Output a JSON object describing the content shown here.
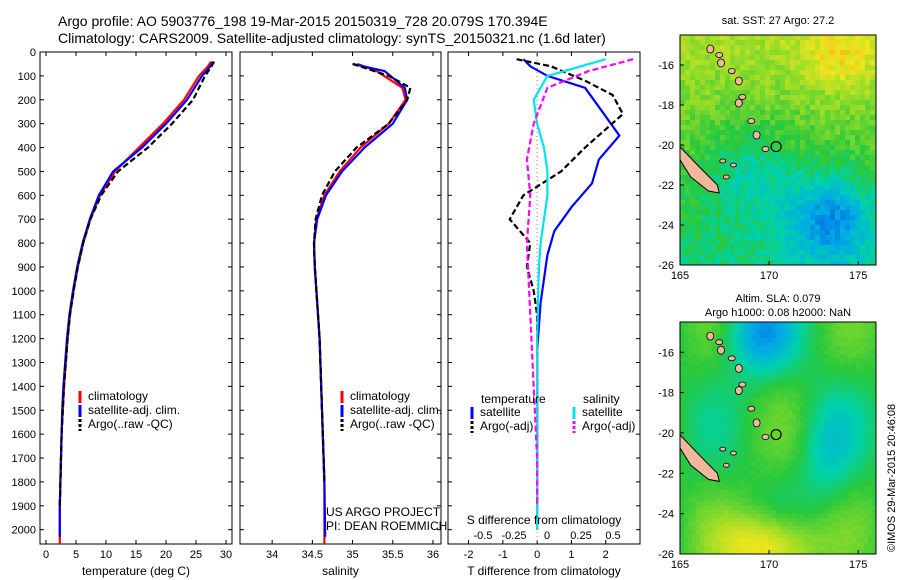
{
  "title_line1": "Argo profile: AO 5903776_198 19-Mar-2015 20150319_728 20.079S 170.394E",
  "title_line2": "Climatology: CARS2009. Satellite-adjusted climatology: synTS_20150321.nc (1.6d later)",
  "stamp": "©IMOS 29-Mar-2015 20:46:08",
  "colors": {
    "climatology": "#ff0000",
    "satellite": "#0000ff",
    "argo": "#000000",
    "sat_salinity": "#00e5e5",
    "argo_salinity": "#ff00ff"
  },
  "chart_data": [
    {
      "type": "line",
      "id": "temperature",
      "xlabel": "temperature (deg C)",
      "ylabel": "",
      "xlim": [
        -1,
        31
      ],
      "ylim": [
        2060,
        0
      ],
      "xticks": [
        "0",
        "5",
        "10",
        "15",
        "20",
        "25",
        "30"
      ],
      "yticks": [
        "0",
        "100",
        "200",
        "300",
        "400",
        "500",
        "600",
        "700",
        "800",
        "900",
        "1000",
        "1100",
        "1200",
        "1300",
        "1400",
        "1500",
        "1600",
        "1700",
        "1800",
        "1900",
        "2000"
      ],
      "legend": [
        "climatology",
        "satellite-adj. clim.",
        "Argo(..raw -QC)"
      ],
      "series": [
        {
          "name": "climatology",
          "x": [
            27.5,
            27.0,
            25.5,
            23.0,
            19.5,
            15.5,
            11.5,
            9.0,
            7.4,
            6.2,
            5.3,
            4.6,
            4.0,
            3.6,
            3.3,
            3.0,
            2.8,
            2.6,
            2.5,
            2.4,
            2.3,
            2.3
          ],
          "y": [
            40,
            60,
            100,
            200,
            300,
            400,
            500,
            600,
            700,
            800,
            900,
            1000,
            1100,
            1200,
            1300,
            1400,
            1500,
            1600,
            1700,
            1800,
            1900,
            2060
          ]
        },
        {
          "name": "satellite-adj. clim.",
          "x": [
            27.8,
            27.4,
            26.0,
            23.5,
            20.0,
            16.0,
            11.2,
            8.8,
            7.3,
            6.1,
            5.2,
            4.5,
            3.9,
            3.5,
            3.2,
            2.9,
            2.7,
            2.6,
            2.5,
            2.4,
            2.3,
            2.3
          ],
          "y": [
            40,
            60,
            100,
            200,
            300,
            400,
            500,
            600,
            700,
            800,
            900,
            1000,
            1100,
            1200,
            1300,
            1400,
            1500,
            1600,
            1700,
            1800,
            1900,
            2030
          ]
        },
        {
          "name": "Argo(..raw -QC)",
          "x": [
            28.0,
            27.6,
            26.5,
            24.5,
            21.0,
            17.0,
            12.0,
            9.2,
            7.4,
            6.2,
            5.3,
            4.6,
            4.0,
            3.6,
            3.3,
            3.0,
            2.8,
            2.6,
            2.5,
            2.4,
            2.3
          ],
          "y": [
            40,
            60,
            100,
            200,
            300,
            400,
            500,
            600,
            700,
            800,
            900,
            1000,
            1100,
            1200,
            1300,
            1400,
            1500,
            1600,
            1700,
            1800,
            1900
          ]
        }
      ]
    },
    {
      "type": "line",
      "id": "salinity",
      "xlabel": "salinity",
      "ylabel": "",
      "xlim": [
        33.6,
        36.1
      ],
      "ylim": [
        2060,
        0
      ],
      "xticks": [
        "34",
        "34.5",
        "35",
        "35.5",
        "36"
      ],
      "legend": [
        "climatology",
        "satellite-adj. clim.",
        "Argo(..raw -QC)"
      ],
      "annotation": [
        "US ARGO PROJECT",
        "PI: DEAN ROEMMICH"
      ],
      "series": [
        {
          "name": "climatology",
          "x": [
            35.06,
            35.3,
            35.62,
            35.66,
            35.45,
            35.1,
            34.84,
            34.65,
            34.55,
            34.52,
            34.53,
            34.55,
            34.57,
            34.59,
            34.6,
            34.61,
            34.62,
            34.63,
            34.64,
            34.65,
            34.65
          ],
          "y": [
            50,
            80,
            150,
            200,
            300,
            400,
            500,
            600,
            700,
            800,
            900,
            1000,
            1100,
            1200,
            1300,
            1400,
            1500,
            1600,
            1700,
            1800,
            2060
          ]
        },
        {
          "name": "satellite-adj. clim.",
          "x": [
            35.0,
            35.4,
            35.65,
            35.68,
            35.5,
            35.15,
            34.87,
            34.67,
            34.56,
            34.52,
            34.53,
            34.55,
            34.57,
            34.59,
            34.6,
            34.61,
            34.62,
            34.63,
            34.64,
            34.65,
            34.66
          ],
          "y": [
            50,
            80,
            150,
            200,
            300,
            400,
            500,
            600,
            700,
            800,
            900,
            1000,
            1100,
            1200,
            1300,
            1400,
            1500,
            1600,
            1700,
            1800,
            2030
          ]
        },
        {
          "name": "Argo(..raw -QC)",
          "x": [
            35.0,
            35.45,
            35.72,
            35.68,
            35.45,
            35.05,
            34.78,
            34.62,
            34.54,
            34.52,
            34.53,
            34.55,
            34.57,
            34.59,
            34.6,
            34.61,
            34.62,
            34.63,
            34.64,
            34.65
          ],
          "y": [
            50,
            100,
            150,
            200,
            300,
            400,
            500,
            600,
            700,
            800,
            900,
            1000,
            1100,
            1200,
            1300,
            1400,
            1500,
            1600,
            1700,
            1800
          ]
        }
      ]
    },
    {
      "type": "line",
      "id": "difference",
      "xlabel": "T difference from climatology",
      "x2label": "S difference from climatology",
      "xlim": [
        -2.6,
        3.0
      ],
      "ylim": [
        2060,
        0
      ],
      "xticks": [
        "-2",
        "-1",
        "0",
        "1",
        "2"
      ],
      "x2ticks": [
        "-0.5",
        "-0.25",
        "0",
        "0.25",
        "0.5"
      ],
      "legend": {
        "temperature": [
          "satellite",
          "Argo(-adj)"
        ],
        "salinity": [
          "satellite",
          "Argo(-adj)"
        ],
        "headers": [
          "temperature",
          "salinity"
        ]
      },
      "series": [
        {
          "name": "temperature satellite",
          "x": [
            -0.4,
            -0.2,
            0.3,
            1.4,
            1.9,
            2.4,
            1.8,
            1.6,
            1.0,
            0.5,
            0.3,
            0.2,
            0.1,
            0.05,
            0.0,
            0.0,
            0.0,
            0.0,
            0.0,
            0.0
          ],
          "y": [
            30,
            60,
            100,
            150,
            250,
            350,
            450,
            550,
            650,
            750,
            850,
            950,
            1050,
            1150,
            1250,
            1400,
            1550,
            1700,
            1850,
            2000
          ]
        },
        {
          "name": "temperature Argo(-adj)",
          "x": [
            -0.6,
            0.4,
            1.4,
            2.2,
            2.5,
            1.4,
            0.7,
            -0.4,
            -0.8,
            -0.2,
            -0.3,
            -0.1,
            0.0,
            0.0,
            0.0,
            0.0,
            0.0,
            0.0
          ],
          "y": [
            30,
            60,
            120,
            180,
            260,
            400,
            500,
            600,
            700,
            800,
            900,
            1000,
            1100,
            1200,
            1300,
            1500,
            1700,
            1900
          ]
        },
        {
          "name": "salinity satellite",
          "x": [
            2.0,
            0.3,
            -0.1,
            0.0,
            0.2,
            0.3,
            0.3,
            0.2,
            0.1,
            0.05,
            0.0,
            0.0,
            0.0
          ],
          "y": [
            30,
            100,
            200,
            300,
            400,
            500,
            600,
            700,
            800,
            900,
            1200,
            1600,
            2000
          ]
        },
        {
          "name": "salinity Argo(-adj)",
          "x": [
            2.8,
            1.5,
            0.3,
            -0.1,
            -0.3,
            -0.2,
            -0.3,
            -0.2,
            -0.1,
            0.0,
            0.0
          ],
          "y": [
            30,
            80,
            150,
            300,
            450,
            600,
            800,
            1100,
            1400,
            1700,
            1900
          ]
        }
      ]
    },
    {
      "type": "heatmap",
      "id": "sst_map",
      "title": "sat. SST: 27 Argo: 27.2",
      "xlim": [
        165,
        176
      ],
      "ylim": [
        -26,
        -14.5
      ],
      "xticks": [
        "165",
        "170",
        "175"
      ],
      "yticks": [
        "-16",
        "-18",
        "-20",
        "-22",
        "-24",
        "-26"
      ],
      "marker": {
        "lon": 170.394,
        "lat": -20.079
      }
    },
    {
      "type": "heatmap",
      "id": "sla_map",
      "title_line1": "Altim. SLA: 0.079",
      "title_line2": "Argo h1000: 0.08 h2000: NaN",
      "xlim": [
        165,
        176
      ],
      "ylim": [
        -26,
        -14.5
      ],
      "xticks": [
        "165",
        "170",
        "175"
      ],
      "yticks": [
        "-16",
        "-18",
        "-20",
        "-22",
        "-24",
        "-26"
      ],
      "marker": {
        "lon": 170.394,
        "lat": -20.079
      }
    }
  ]
}
